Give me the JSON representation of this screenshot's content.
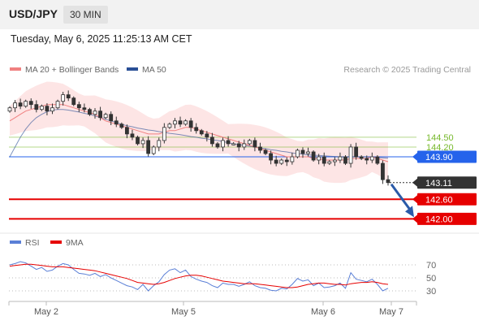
{
  "header": {
    "symbol": "USD/JPY",
    "timeframe": "30 MIN"
  },
  "timestamp": "Tuesday, May 6, 2025 11:25:13 AM CET",
  "legend": {
    "ma20": "MA 20 + Bollinger Bands",
    "ma50": "MA 50",
    "credit": "Research © 2025 Trading Central",
    "rsi": "RSI",
    "ma9": "9MA"
  },
  "colors": {
    "ma20": "#f08080",
    "band": "#fcdcdc",
    "ma50": "#2a4f96",
    "up": "#ffffff",
    "down": "#333333",
    "support": "#e60000",
    "resistance": "#76b82a",
    "pivot": "#2563eb",
    "current": "#333333",
    "rsi": "#5a7fd6",
    "rsi_ma": "#e60000",
    "arrow": "#2a5aa8"
  },
  "chart_data": [
    {
      "type": "candlestick",
      "x_labels": [
        "May 2",
        "May 5",
        "May 6",
        "May 7"
      ],
      "levels": [
        {
          "value": "144.50",
          "kind": "resistance"
        },
        {
          "value": "144.20",
          "kind": "resistance"
        },
        {
          "value": "143.90",
          "kind": "pivot"
        },
        {
          "value": "143.11",
          "kind": "current"
        },
        {
          "value": "142.60",
          "kind": "support"
        },
        {
          "value": "142.00",
          "kind": "support"
        }
      ],
      "forecast_arrow": {
        "from": 143.11,
        "to": 142.0
      },
      "series": [
        {
          "name": "price",
          "close": [
            145.4,
            145.55,
            145.45,
            145.6,
            145.5,
            145.35,
            145.45,
            145.3,
            145.4,
            145.6,
            145.8,
            145.7,
            145.5,
            145.4,
            145.35,
            145.2,
            145.3,
            145.1,
            145.2,
            145.0,
            144.9,
            144.8,
            144.6,
            144.5,
            144.3,
            144.4,
            144.0,
            144.2,
            144.4,
            144.8,
            144.9,
            145.0,
            144.9,
            145.0,
            144.8,
            144.7,
            144.6,
            144.5,
            144.3,
            144.2,
            144.4,
            144.3,
            144.3,
            144.2,
            144.3,
            144.4,
            144.2,
            144.1,
            144.0,
            143.8,
            143.7,
            143.8,
            143.75,
            143.9,
            144.1,
            144.0,
            144.05,
            143.8,
            143.9,
            143.7,
            143.75,
            143.8,
            143.9,
            143.7,
            144.2,
            143.9,
            143.85,
            143.8,
            143.9,
            143.7,
            143.2,
            143.11
          ]
        },
        {
          "name": "MA 20",
          "values": [
            145.0,
            145.1,
            145.2,
            145.3,
            145.35,
            145.4,
            145.45,
            145.5,
            145.5,
            145.5,
            145.5,
            145.45,
            145.4,
            145.35,
            145.3,
            145.25,
            145.2,
            145.1,
            145.0,
            144.95,
            144.9,
            144.85,
            144.8,
            144.75,
            144.7,
            144.65,
            144.6,
            144.6,
            144.6,
            144.65,
            144.7,
            144.7,
            144.75,
            144.8,
            144.8,
            144.75,
            144.7,
            144.65,
            144.6,
            144.55,
            144.5,
            144.45,
            144.4,
            144.35,
            144.3,
            144.25,
            144.2,
            144.15,
            144.1,
            144.05,
            144.0,
            143.95,
            143.9,
            143.9,
            143.9,
            143.9,
            143.9,
            143.85,
            143.85,
            143.8,
            143.8,
            143.8,
            143.8,
            143.8,
            143.85,
            143.85,
            143.85,
            143.85,
            143.9,
            143.85,
            143.8,
            143.75
          ]
        },
        {
          "name": "MA 50",
          "values": [
            143.9,
            144.2,
            144.5,
            144.75,
            144.95,
            145.1,
            145.2,
            145.28,
            145.33,
            145.35,
            145.35,
            145.33,
            145.3,
            145.27,
            145.23,
            145.2,
            145.15,
            145.1,
            145.05,
            145.0,
            144.95,
            144.9,
            144.85,
            144.82,
            144.78,
            144.75,
            144.72,
            144.7,
            144.67,
            144.65,
            144.62,
            144.6,
            144.58,
            144.55,
            144.52,
            144.5,
            144.47,
            144.45,
            144.42,
            144.4,
            144.37,
            144.33,
            144.3,
            144.27,
            144.25,
            144.22,
            144.2,
            144.17,
            144.15,
            144.12,
            144.1,
            144.07,
            144.05,
            144.02,
            144.0,
            143.98,
            143.96,
            143.95,
            143.94,
            143.93,
            143.92,
            143.91,
            143.9,
            143.9,
            143.9,
            143.9,
            143.9,
            143.9,
            143.89,
            143.88,
            143.87,
            143.86
          ]
        }
      ]
    },
    {
      "type": "line",
      "ticks": [
        "70",
        "50",
        "30"
      ],
      "series": [
        {
          "name": "RSI",
          "values": [
            70,
            72,
            75,
            73,
            68,
            63,
            66,
            60,
            62,
            68,
            72,
            70,
            63,
            57,
            56,
            54,
            57,
            52,
            55,
            50,
            46,
            42,
            38,
            36,
            32,
            40,
            30,
            38,
            44,
            55,
            62,
            64,
            58,
            62,
            52,
            48,
            45,
            43,
            38,
            35,
            42,
            40,
            40,
            37,
            40,
            44,
            38,
            35,
            34,
            31,
            30,
            34,
            33,
            40,
            49,
            45,
            47,
            38,
            42,
            35,
            36,
            38,
            42,
            34,
            58,
            48,
            46,
            44,
            48,
            40,
            30,
            34
          ]
        },
        {
          "name": "9MA",
          "values": [
            68,
            69,
            70,
            71,
            71,
            70,
            69,
            68,
            67,
            67,
            67,
            66,
            65,
            64,
            63,
            62,
            61,
            59,
            57,
            55,
            53,
            51,
            49,
            46,
            43,
            42,
            41,
            40,
            41,
            43,
            46,
            49,
            51,
            53,
            54,
            54,
            53,
            51,
            49,
            47,
            45,
            44,
            43,
            42,
            41,
            41,
            41,
            40,
            39,
            38,
            37,
            36,
            35,
            35,
            36,
            38,
            40,
            41,
            42,
            42,
            41,
            40,
            40,
            39,
            41,
            42,
            43,
            43,
            44,
            43,
            41,
            40
          ]
        }
      ]
    }
  ]
}
